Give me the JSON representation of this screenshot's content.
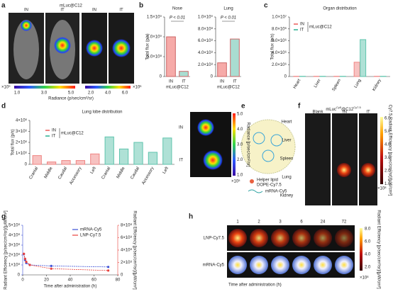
{
  "panel_labels": [
    "a",
    "b",
    "c",
    "d",
    "e",
    "f",
    "g",
    "h"
  ],
  "panel_a": {
    "title": "mLuc@C12",
    "groups": [
      "IN",
      "IT",
      "IN",
      "IT"
    ],
    "colorbar1": {
      "exponent": "×10⁹",
      "ticks": [
        "1.0",
        "3.0",
        "5.0"
      ],
      "label": "Radiance (p/sec/cm²/sr)"
    },
    "colorbar2": {
      "ticks": [
        "2.0",
        "4.0",
        "6.0"
      ],
      "exponent": "×10⁶"
    }
  },
  "panel_d_image": {
    "groups": [
      "IN",
      "IT"
    ],
    "colorbar": {
      "ticks": [
        "5.0",
        "4.0",
        "3.0",
        "2.0",
        "1.0"
      ],
      "exponent": "×10⁵",
      "label": "Radiance [p/sec/cm²/sr]"
    }
  },
  "panel_e": {
    "labels": [
      "Helper lipid",
      "DOPE-Cy7.5",
      "mRNA-Cy5"
    ]
  },
  "panel_f": {
    "title_parts": [
      "mLuc",
      "Cy5",
      "@C12",
      "Cy7.5"
    ],
    "columns": [
      "Blank",
      "IN",
      "IT"
    ],
    "rows": [
      "Heart",
      "Liver",
      "Spleen",
      "Lung",
      "Kidney"
    ],
    "colorbar": {
      "ticks": [
        "6.0",
        "5.0",
        "4.0",
        "3.0",
        "2.0",
        "1.0"
      ],
      "exponent": "×10⁸",
      "label": "Cy7.5 Radiant Efficiency [p/sec/cm²/sr]/[μW/cm²]"
    }
  },
  "panel_h": {
    "times": [
      "1",
      "2",
      "3",
      "6",
      "24",
      "72"
    ],
    "rows": [
      "LNP-Cy7.5",
      "mRNA-Cy5"
    ],
    "xlabel": "Time after administration (h)",
    "colorbar": {
      "ticks": [
        "8.0",
        "6.0",
        "4.0",
        "2.0"
      ],
      "exponent": "×10⁸",
      "label": "Radiant Efficiency [p/sec/cm²/sr]/[μW/cm²]"
    }
  },
  "chart_data": [
    {
      "type": "bar",
      "title": "Nose",
      "ylabel": "Total flux (p/s)",
      "xlabel": "mLuc@C12",
      "annotation": "P < 0.01",
      "categories": [
        "IN",
        "IT"
      ],
      "values": [
        1000000000,
        130000000
      ],
      "colors": [
        "#f6aaa8",
        "#a9ddd1"
      ],
      "ylim": [
        0,
        1500000000
      ],
      "yticks": [
        0,
        {
          "value": 500000000,
          "label": "5.0×10⁸"
        },
        {
          "value": 1000000000,
          "label": "1.0×10⁹"
        },
        {
          "value": 1500000000,
          "label": "1.5×10⁹"
        }
      ]
    },
    {
      "type": "bar",
      "title": "Lung",
      "xlabel": "mLuc@C12",
      "annotation": "P < 0.01",
      "categories": [
        "IN",
        "IT"
      ],
      "values": [
        230000000,
        630000000
      ],
      "colors": [
        "#f6aaa8",
        "#a9ddd1"
      ],
      "ylim": [
        0,
        1000000000
      ],
      "yticks": [
        0,
        {
          "value": 200000000,
          "label": "2.0×10⁸"
        },
        {
          "value": 400000000,
          "label": "4.0×10⁸"
        },
        {
          "value": 600000000,
          "label": "6.0×10⁸"
        },
        {
          "value": 800000000,
          "label": "8.0×10⁸"
        },
        {
          "value": 1000000000,
          "label": "1.0×10⁹"
        }
      ]
    },
    {
      "type": "bar",
      "title": "Organ distribution",
      "ylabel": "Total flux (p/s)",
      "legend_title": "mLuc@C12",
      "categories": [
        "Heart",
        "Liver",
        "Spleen",
        "Lung",
        "Kidney"
      ],
      "series": [
        {
          "name": "IN",
          "color": "#f08583",
          "values": [
            40000,
            40000,
            40000,
            2400000,
            40000
          ]
        },
        {
          "name": "IT",
          "color": "#5fc4ad",
          "values": [
            40000,
            40000,
            40000,
            6200000,
            40000
          ]
        }
      ],
      "ylim": [
        0,
        10000000
      ],
      "yticks": [
        0,
        {
          "value": 2000000,
          "label": "2.0×10⁶"
        },
        {
          "value": 4000000,
          "label": "4.0×10⁶"
        },
        {
          "value": 6000000,
          "label": "6.0×10⁶"
        },
        {
          "value": 8000000,
          "label": "8.0×10⁶"
        },
        {
          "value": 10000000,
          "label": "1.0×10⁷"
        }
      ]
    },
    {
      "type": "bar",
      "title": "Lung lobe distribution",
      "ylabel": "Total flux (p/s)",
      "legend_title": "mLuc@C12",
      "categories": [
        "Cranial",
        "Middle",
        "Caudal",
        "Accessory",
        "Left"
      ],
      "series": [
        {
          "name": "IN",
          "color": "#f08583",
          "values": [
            800000,
            220000,
            350000,
            350000,
            950000
          ]
        },
        {
          "name": "IT",
          "color": "#5fc4ad",
          "values": [
            2500000,
            1400000,
            2000000,
            1100000,
            2400000
          ]
        }
      ],
      "ylim": [
        0,
        4000000
      ],
      "yticks": [
        0,
        {
          "value": 1000000,
          "label": "1×10⁶"
        },
        {
          "value": 2000000,
          "label": "2×10⁶"
        },
        {
          "value": 3000000,
          "label": "3×10⁶"
        },
        {
          "value": 4000000,
          "label": "4×10⁶"
        }
      ]
    },
    {
      "type": "line",
      "xlabel": "Time after administration (h)",
      "ylabel": "Radiant Efficiency [p/sec/cm²/sr]/[μW/cm²]",
      "y2label": "Radiant Efficiency [p/sec/cm²/sr]/[μW/cm²]",
      "x": [
        1,
        2,
        3,
        6,
        24,
        72
      ],
      "xlim": [
        0,
        80
      ],
      "xticks": [
        0,
        20,
        40,
        60,
        80
      ],
      "ylim": [
        0,
        500000000
      ],
      "yticks": [
        0,
        {
          "value": 100000000,
          "label": "1×10⁸"
        },
        {
          "value": 200000000,
          "label": "2×10⁸"
        },
        {
          "value": 300000000,
          "label": "3×10⁸"
        },
        {
          "value": 400000000,
          "label": "4×10⁸"
        },
        {
          "value": 500000000,
          "label": "5×10⁸"
        }
      ],
      "y2lim": [
        0,
        800000000
      ],
      "y2ticks": [
        0,
        {
          "value": 200000000,
          "label": "2×10⁸"
        },
        {
          "value": 400000000,
          "label": "4×10⁸"
        },
        {
          "value": 600000000,
          "label": "6×10⁸"
        },
        {
          "value": 800000000,
          "label": "8×10⁸"
        }
      ],
      "series": [
        {
          "name": "mRNA-Cy5",
          "color": "#3b4fd6",
          "values": [
            210000000,
            150000000,
            120000000,
            100000000,
            90000000,
            80000000
          ]
        },
        {
          "name": "LNP-Cy7.5",
          "color": "#e8413c",
          "axis": "y2",
          "values": [
            340000000,
            260000000,
            210000000,
            160000000,
            100000000,
            70000000
          ]
        }
      ]
    }
  ]
}
